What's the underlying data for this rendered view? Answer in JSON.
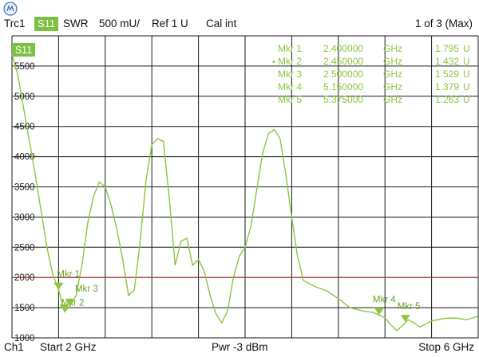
{
  "header": {
    "trace": "Trc1",
    "param": "S11",
    "format": "SWR",
    "scale": "500 mU/",
    "ref": "Ref 1 U",
    "cal": "Cal int",
    "page": "1 of 3 (Max)"
  },
  "trace_label": "S11",
  "footer": {
    "channel": "Ch1",
    "start": "Start  2 GHz",
    "power": "Pwr  -3 dBm",
    "stop": "Stop  6 GHz"
  },
  "markers_table": [
    {
      "name": "Mkr 1",
      "freq": "2.400000",
      "unit": "GHz",
      "value": "1.795",
      "value_unit": "U",
      "active": false
    },
    {
      "name": "Mkr 2",
      "freq": "2.450000",
      "unit": "GHz",
      "value": "1.432",
      "value_unit": "U",
      "active": true
    },
    {
      "name": "Mkr 3",
      "freq": "2.500000",
      "unit": "GHz",
      "value": "1.529",
      "value_unit": "U",
      "active": false
    },
    {
      "name": "Mkr 4",
      "freq": "5.150000",
      "unit": "GHz",
      "value": "1.379",
      "value_unit": "U",
      "active": false
    },
    {
      "name": "Mkr 5",
      "freq": "5.375000",
      "unit": "GHz",
      "value": "1.263",
      "value_unit": "U",
      "active": false
    }
  ],
  "colors": {
    "trace": "#8cc63f",
    "grid": "#1a1a1a",
    "limit": "#b03030",
    "badge": "#7cc242"
  },
  "chart_data": {
    "type": "line",
    "xlim": [
      2.0,
      6.0
    ],
    "ylim": [
      1000,
      6000
    ],
    "yticks": [
      1000,
      1500,
      2000,
      2500,
      3000,
      3500,
      4000,
      4500,
      5000,
      5500
    ],
    "ytick_labels": [
      "1000",
      "1500",
      "2000",
      "2500",
      "3000",
      "3500",
      "4000",
      "4500",
      "5000",
      "5500"
    ],
    "reference_line": 2000,
    "series": [
      {
        "name": "S11",
        "points": [
          [
            2.0,
            5700
          ],
          [
            2.05,
            5350
          ],
          [
            2.1,
            4800
          ],
          [
            2.15,
            4250
          ],
          [
            2.2,
            3700
          ],
          [
            2.25,
            3100
          ],
          [
            2.3,
            2500
          ],
          [
            2.35,
            2050
          ],
          [
            2.4,
            1795
          ],
          [
            2.45,
            1432
          ],
          [
            2.5,
            1529
          ],
          [
            2.55,
            1700
          ],
          [
            2.6,
            2200
          ],
          [
            2.65,
            2900
          ],
          [
            2.7,
            3350
          ],
          [
            2.75,
            3580
          ],
          [
            2.8,
            3500
          ],
          [
            2.85,
            3200
          ],
          [
            2.9,
            2800
          ],
          [
            2.95,
            2300
          ],
          [
            3.0,
            1700
          ],
          [
            3.05,
            1800
          ],
          [
            3.1,
            2600
          ],
          [
            3.15,
            3600
          ],
          [
            3.2,
            4200
          ],
          [
            3.25,
            4300
          ],
          [
            3.3,
            4250
          ],
          [
            3.35,
            3300
          ],
          [
            3.4,
            2200
          ],
          [
            3.45,
            2600
          ],
          [
            3.5,
            2650
          ],
          [
            3.55,
            2200
          ],
          [
            3.6,
            2300
          ],
          [
            3.65,
            2100
          ],
          [
            3.7,
            1700
          ],
          [
            3.75,
            1400
          ],
          [
            3.8,
            1250
          ],
          [
            3.85,
            1450
          ],
          [
            3.9,
            2000
          ],
          [
            3.95,
            2350
          ],
          [
            4.0,
            2500
          ],
          [
            4.05,
            2850
          ],
          [
            4.1,
            3450
          ],
          [
            4.15,
            4050
          ],
          [
            4.2,
            4380
          ],
          [
            4.25,
            4450
          ],
          [
            4.3,
            4300
          ],
          [
            4.35,
            3700
          ],
          [
            4.4,
            3000
          ],
          [
            4.45,
            2350
          ],
          [
            4.5,
            1950
          ],
          [
            4.6,
            1850
          ],
          [
            4.7,
            1780
          ],
          [
            4.8,
            1650
          ],
          [
            4.9,
            1500
          ],
          [
            5.0,
            1450
          ],
          [
            5.1,
            1420
          ],
          [
            5.15,
            1379
          ],
          [
            5.2,
            1330
          ],
          [
            5.25,
            1220
          ],
          [
            5.3,
            1120
          ],
          [
            5.35,
            1200
          ],
          [
            5.4,
            1300
          ],
          [
            5.45,
            1250
          ],
          [
            5.5,
            1180
          ],
          [
            5.6,
            1280
          ],
          [
            5.7,
            1320
          ],
          [
            5.8,
            1330
          ],
          [
            5.9,
            1300
          ],
          [
            6.0,
            1360
          ]
        ]
      }
    ],
    "markers": [
      {
        "label": "Mkr 1",
        "x": 2.4,
        "y": 1795
      },
      {
        "label": "Mkr 2",
        "x": 2.45,
        "y": 1432
      },
      {
        "label": "Mkr 3",
        "x": 2.5,
        "y": 1529
      },
      {
        "label": "Mkr 4",
        "x": 5.15,
        "y": 1379
      },
      {
        "label": "Mkr 5",
        "x": 5.375,
        "y": 1263
      }
    ]
  }
}
